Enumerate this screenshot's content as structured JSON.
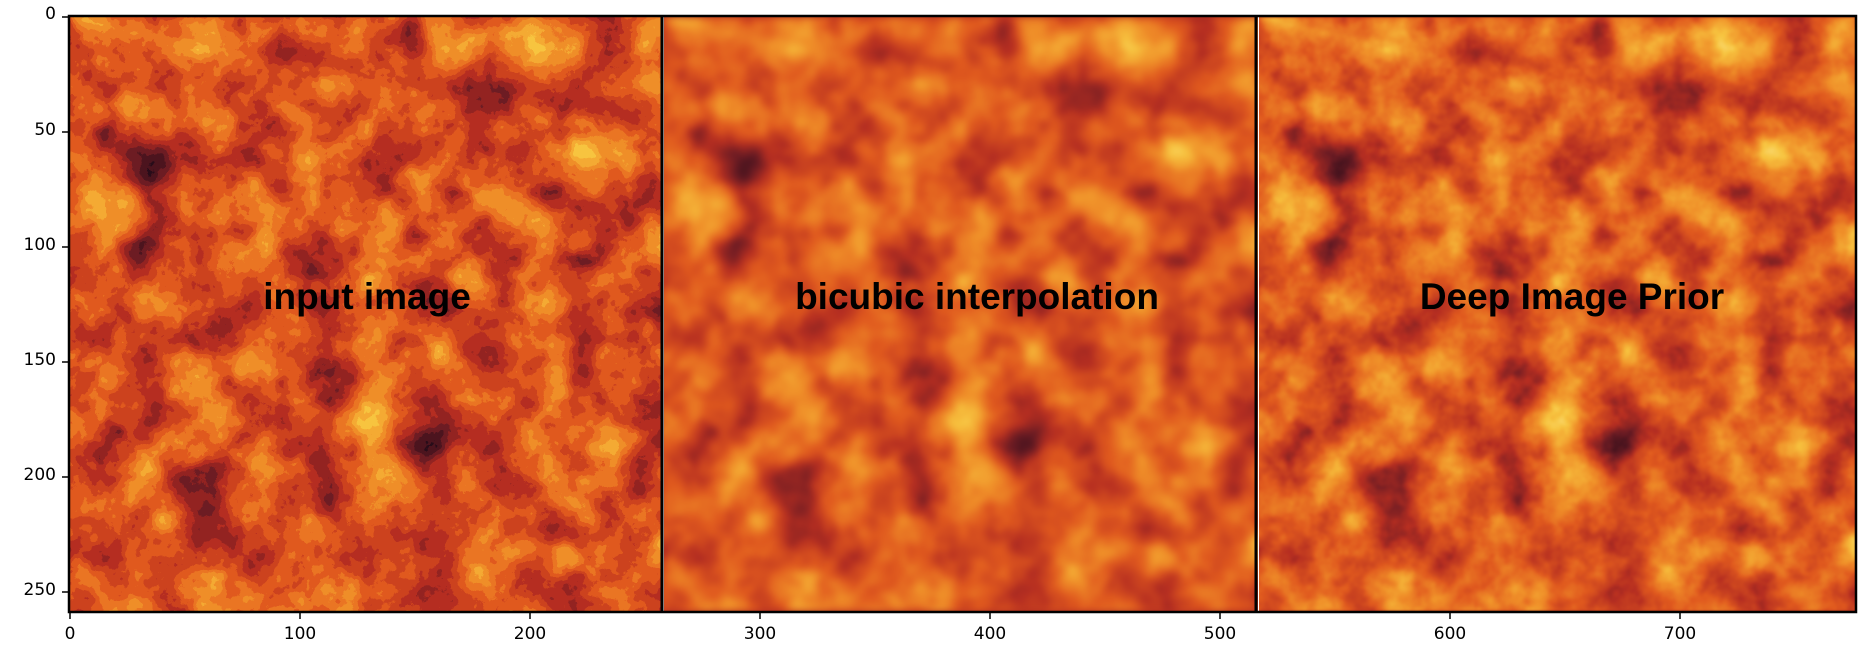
{
  "panels": [
    {
      "label": "input image",
      "kind": "pixelated"
    },
    {
      "label": "bicubic interpolation",
      "kind": "smooth"
    },
    {
      "label": "Deep Image Prior",
      "kind": "sharp"
    }
  ],
  "axes": {
    "y_ticks": [
      "0",
      "50",
      "100",
      "150",
      "200",
      "250"
    ],
    "x_ticks": [
      "0",
      "100",
      "200",
      "300",
      "400",
      "500",
      "600",
      "700"
    ]
  },
  "colormap": {
    "name": "afmhot-like",
    "colors": [
      "#2a0e1a",
      "#6e1c24",
      "#b42f22",
      "#e0581f",
      "#f0902a",
      "#f8c540",
      "#fde58a"
    ]
  }
}
